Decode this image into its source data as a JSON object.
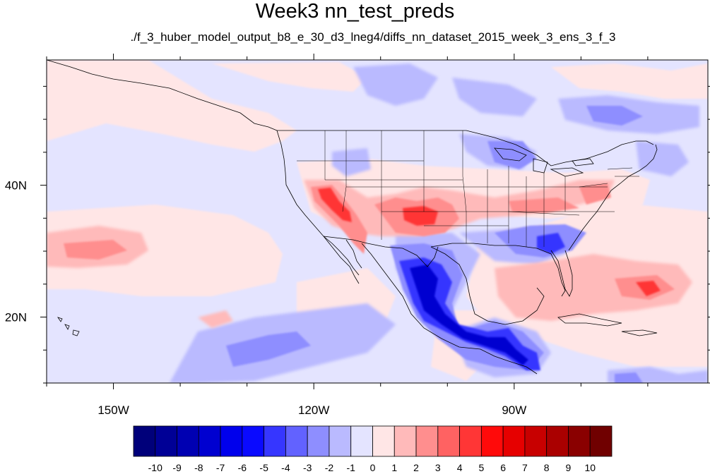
{
  "title": "Week3 nn_test_preds",
  "subtitle": "./f_3_huber_model_output_b8_e_30_d3_lneg4/diffs_nn_dataset_2015_week_3_ens_3_f_3",
  "axes": {
    "x_ticks": [
      "150W",
      "120W",
      "90W"
    ],
    "y_ticks": [
      "40N",
      "20N"
    ]
  },
  "colorbar": {
    "labels": [
      "-10",
      "-9",
      "-8",
      "-7",
      "-6",
      "-5",
      "-4",
      "-3",
      "-2",
      "-1",
      "0",
      "1",
      "2",
      "3",
      "4",
      "5",
      "6",
      "7",
      "8",
      "9",
      "10"
    ],
    "colors": [
      "#00007a",
      "#000096",
      "#0000b2",
      "#0000d0",
      "#0000ec",
      "#0a0aff",
      "#3636ff",
      "#6262ff",
      "#8e8eff",
      "#babaff",
      "#e4e4ff",
      "#ffe6e6",
      "#ffbaba",
      "#ff8e8e",
      "#ff6262",
      "#ff3636",
      "#ff0a0a",
      "#e60000",
      "#c80000",
      "#aa0000",
      "#8a0000",
      "#700000"
    ]
  },
  "chart_data": {
    "type": "heatmap",
    "title": "Week3 nn_test_preds",
    "subtitle": "./f_3_huber_model_output_b8_e_30_d3_lneg4/diffs_nn_dataset_2015_week_3_ens_3_f_3",
    "projection": "cylindrical equidistant",
    "lon_range": [
      -160,
      -61
    ],
    "lat_range": [
      10,
      59
    ],
    "x_ticks": [
      "150W",
      "120W",
      "90W"
    ],
    "y_ticks": [
      "40N",
      "20N"
    ],
    "levels": [
      -10,
      -9,
      -8,
      -7,
      -6,
      -5,
      -4,
      -3,
      -2,
      -1,
      0,
      1,
      2,
      3,
      4,
      5,
      6,
      7,
      8,
      9,
      10
    ],
    "features": [
      {
        "region": "southern Mexico / Sierra Madre",
        "value_range": [
          -8,
          -4
        ]
      },
      {
        "region": "southeastern US / Gulf coast",
        "value_range": [
          -4,
          -2
        ]
      },
      {
        "region": "Great Lakes",
        "value_range": [
          -3,
          -2
        ]
      },
      {
        "region": "Arizona / New Mexico / Oklahoma",
        "value_range": [
          2,
          4
        ]
      },
      {
        "region": "central Plains / Ohio Valley band",
        "value_range": [
          1,
          3
        ]
      },
      {
        "region": "subtropical Atlantic",
        "value_range": [
          1,
          3
        ]
      },
      {
        "region": "eastern Pacific near 30N",
        "value_range": [
          1,
          2
        ]
      },
      {
        "region": "Pacific south of 15N",
        "value_range": [
          -3,
          -1
        ]
      }
    ]
  }
}
